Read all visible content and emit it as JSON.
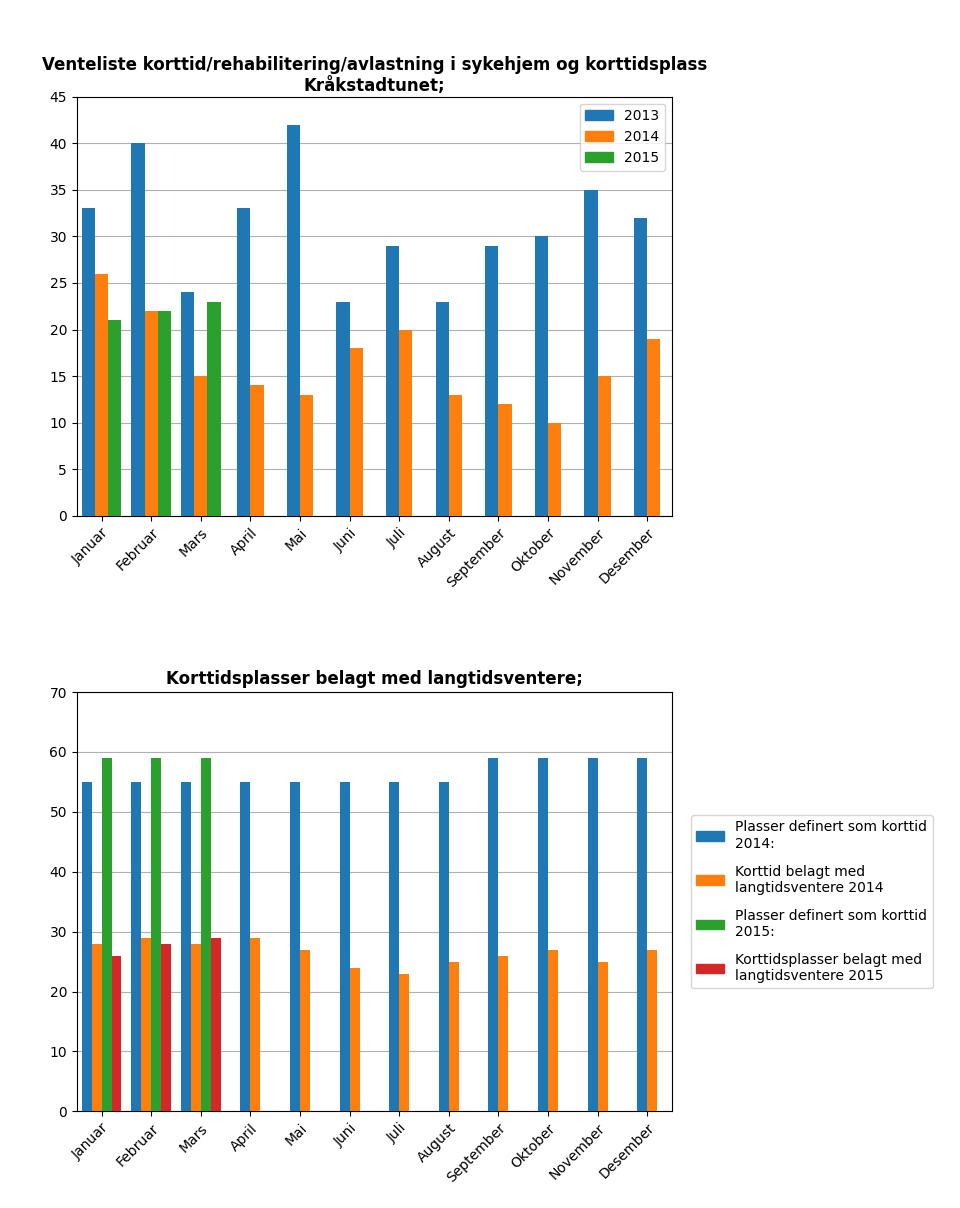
{
  "chart_data": [
    {
      "type": "bar",
      "title": "Venteliste korttid/rehabilitering/avlastning i sykehjem og korttidsplass Kråkstadtunet;",
      "categories": [
        "Januar",
        "Februar",
        "Mars",
        "April",
        "Mai",
        "Juni",
        "Juli",
        "August",
        "September",
        "Oktober",
        "November",
        "Desember"
      ],
      "series": [
        {
          "name": "2013",
          "values": [
            33,
            40,
            24,
            33,
            42,
            23,
            29,
            23,
            29,
            30,
            35,
            32
          ]
        },
        {
          "name": "2014",
          "values": [
            26,
            22,
            15,
            14,
            13,
            18,
            20,
            13,
            12,
            10,
            15,
            19
          ]
        },
        {
          "name": "2015",
          "values": [
            21,
            22,
            23,
            null,
            null,
            null,
            null,
            null,
            null,
            null,
            null,
            null
          ]
        }
      ],
      "ylim": [
        0,
        45
      ],
      "yticks": [
        0,
        5,
        10,
        15,
        20,
        25,
        30,
        35,
        40,
        45
      ],
      "grid": "y",
      "legend": "upper right"
    },
    {
      "type": "bar",
      "title": "Korttidsplasser belagt med langtidsventere;",
      "categories": [
        "Januar",
        "Februar",
        "Mars",
        "April",
        "Mai",
        "Juni",
        "Juli",
        "August",
        "September",
        "Oktober",
        "November",
        "Desember"
      ],
      "series": [
        {
          "name": "Plasser definert som korttid\n2014:",
          "values": [
            55,
            55,
            55,
            55,
            55,
            55,
            55,
            55,
            59,
            59,
            59,
            59
          ]
        },
        {
          "name": "Korttid belagt med\nlangtidsventere 2014",
          "values": [
            28,
            29,
            28,
            29,
            27,
            24,
            23,
            25,
            26,
            27,
            25,
            27
          ]
        },
        {
          "name": "Plasser definert som korttid\n2015:",
          "values": [
            59,
            59,
            59,
            null,
            null,
            null,
            null,
            null,
            null,
            null,
            null,
            null
          ]
        },
        {
          "name": "Korttidsplasser belagt med\nlangtidsventere 2015",
          "values": [
            26,
            28,
            29,
            null,
            null,
            null,
            null,
            null,
            null,
            null,
            null,
            null
          ]
        }
      ],
      "ylim": [
        0,
        70
      ],
      "yticks": [
        0,
        10,
        20,
        30,
        40,
        50,
        60,
        70
      ],
      "grid": "y",
      "legend": "right"
    }
  ]
}
